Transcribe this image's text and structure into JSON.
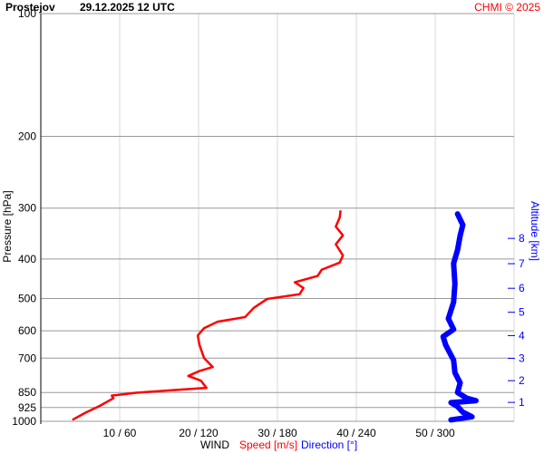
{
  "header": {
    "station": "Prostejov",
    "datetime": "29.12.2025 12 UTC",
    "credit": "CHMI © 2025"
  },
  "chart_data": {
    "type": "line",
    "title": "Prostejov   29.12.2025 12 UTC",
    "ylabel": "Pressure [hPa]",
    "yscale": "log",
    "ylim": [
      1000,
      100
    ],
    "yticks": [
      100,
      200,
      300,
      400,
      500,
      600,
      700,
      850,
      925,
      1000
    ],
    "xlabel_parts": [
      "WIND",
      "Speed [m/s]",
      "Direction [°]"
    ],
    "xlim_speed": [
      0,
      60
    ],
    "xlim_direction": [
      0,
      360
    ],
    "xticks": [
      {
        "speed": 10,
        "dir": 60,
        "label": "10 / 60"
      },
      {
        "speed": 20,
        "dir": 120,
        "label": "20 / 120"
      },
      {
        "speed": 30,
        "dir": 180,
        "label": "30 / 180"
      },
      {
        "speed": 40,
        "dir": 240,
        "label": "40 / 240"
      },
      {
        "speed": 50,
        "dir": 300,
        "label": "50 / 300"
      }
    ],
    "y2label": "Altitude [km]",
    "y2ticks": [
      1,
      2,
      3,
      4,
      5,
      6,
      7,
      8
    ],
    "grid": true,
    "colors": {
      "speed": "#ff0000",
      "direction": "#0000ff",
      "credit": "#ff0000"
    },
    "series": [
      {
        "name": "Speed [m/s]",
        "pressure": [
          992,
          952,
          916,
          878,
          865,
          851,
          836,
          828,
          795,
          774,
          753,
          736,
          700,
          648,
          616,
          591,
          570,
          555,
          527,
          501,
          488,
          471,
          456,
          440,
          425,
          408,
          392,
          368,
          350,
          333,
          316,
          304
        ],
        "values": [
          4.0,
          5.7,
          7.5,
          9.2,
          9.0,
          12.1,
          17.8,
          21.0,
          20.3,
          18.7,
          20.1,
          21.8,
          20.7,
          20.1,
          19.9,
          20.7,
          22.4,
          25.9,
          27.0,
          28.7,
          32.8,
          33.3,
          32.2,
          35.1,
          35.6,
          37.9,
          38.3,
          37.4,
          38.3,
          37.4,
          37.9,
          38.0
        ]
      },
      {
        "name": "Direction [°]",
        "pressure": [
          992,
          975,
          950,
          920,
          900,
          890,
          878,
          850,
          805,
          760,
          708,
          650,
          620,
          595,
          560,
          510,
          460,
          410,
          380,
          350,
          330,
          310
        ],
        "values": [
          312,
          328,
          321,
          317,
          312,
          331,
          324,
          317,
          319,
          315,
          314,
          308,
          306,
          314,
          310,
          314,
          315,
          314,
          317,
          319,
          321,
          317
        ]
      }
    ]
  }
}
